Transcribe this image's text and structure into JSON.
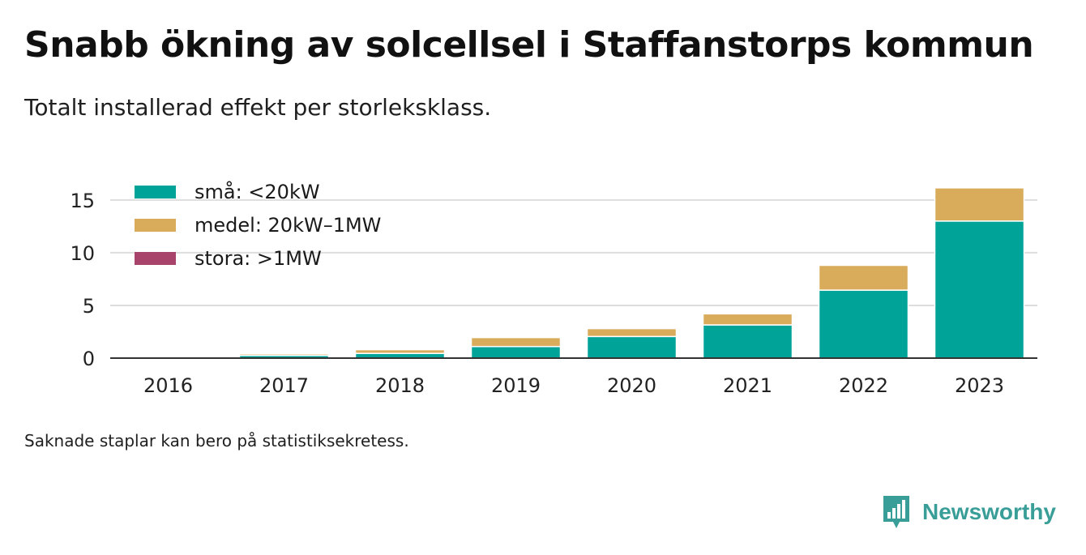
{
  "title": "Snabb ökning av solcellsel i Staffanstorps kommun",
  "subtitle": "Totalt installerad effekt per storleksklass.",
  "note": "Saknade staplar kan bero på statistiksekretess.",
  "brand": {
    "name": "Newsworthy",
    "icon": "newsworthy-bar-chart-logo-icon",
    "color": "#3a9e98"
  },
  "colors": {
    "sma": "#00a398",
    "medel": "#d9ac5b",
    "stora": "#a8436b",
    "grid": "#dddddd",
    "axis": "#333333"
  },
  "chart_data": {
    "type": "bar",
    "stacked": true,
    "categories": [
      "2016",
      "2017",
      "2018",
      "2019",
      "2020",
      "2021",
      "2022",
      "2023"
    ],
    "series": [
      {
        "name": "små: <20kW",
        "color": "#00a398",
        "values": [
          0.05,
          0.25,
          0.45,
          1.1,
          2.05,
          3.15,
          6.45,
          13.0
        ]
      },
      {
        "name": "medel: 20kW–1MW",
        "color": "#d9ac5b",
        "values": [
          0.02,
          0.15,
          0.35,
          0.85,
          0.75,
          1.05,
          2.35,
          3.15
        ]
      },
      {
        "name": "stora: >1MW",
        "color": "#a8436b",
        "values": [
          0,
          0,
          0,
          0,
          0,
          0,
          0,
          0
        ]
      }
    ],
    "yticks": [
      0,
      5,
      10,
      15
    ],
    "ylim": [
      0,
      16.6
    ],
    "grid": true,
    "legend": "top-left"
  }
}
